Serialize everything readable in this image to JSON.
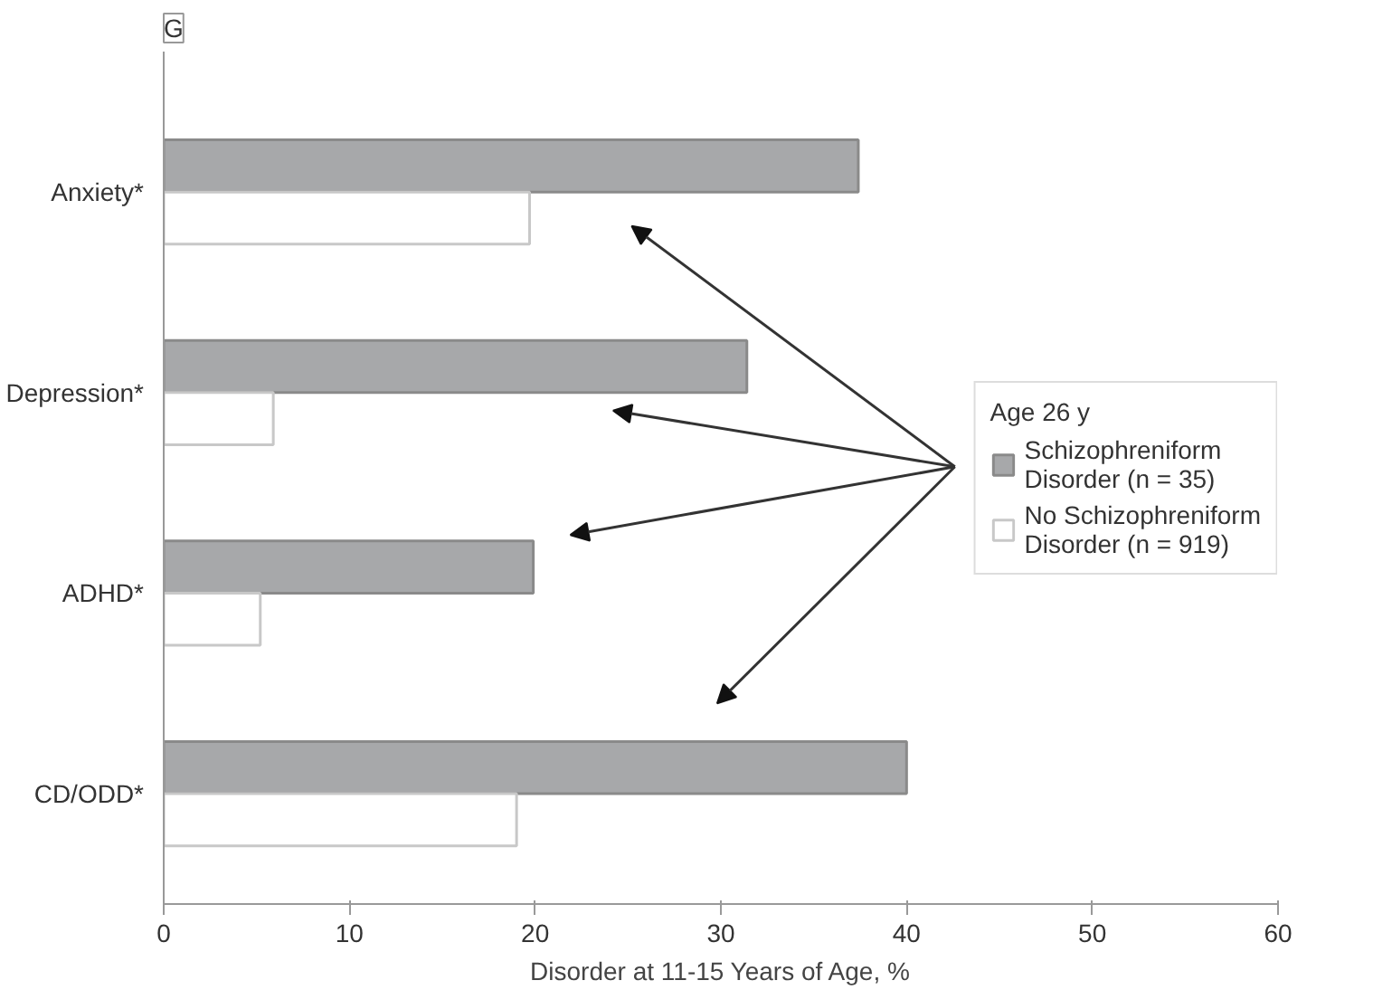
{
  "chart_data": {
    "type": "bar",
    "orientation": "horizontal",
    "xlabel": "Disorder at 11-15 Years of Age, %",
    "legend_title": "Age 26 y",
    "legend": "right",
    "grid": false,
    "categories": [
      "Anxiety*",
      "Depression*",
      "ADHD*",
      "CD/ODD*"
    ],
    "series": [
      {
        "name": "Schizophreniform Disorder (n = 35)",
        "color": "#a7a8aa",
        "values": [
          37.4,
          31.4,
          19.9,
          40.0
        ]
      },
      {
        "name": "No Schizophreniform Disorder (n = 919)",
        "color": "#ffffff",
        "values": [
          19.7,
          5.9,
          5.2,
          19.0
        ]
      }
    ],
    "xlim": [
      0,
      60
    ],
    "xticks": [
      0,
      10,
      20,
      30,
      40,
      50,
      60
    ],
    "annotations": [
      "G"
    ]
  }
}
